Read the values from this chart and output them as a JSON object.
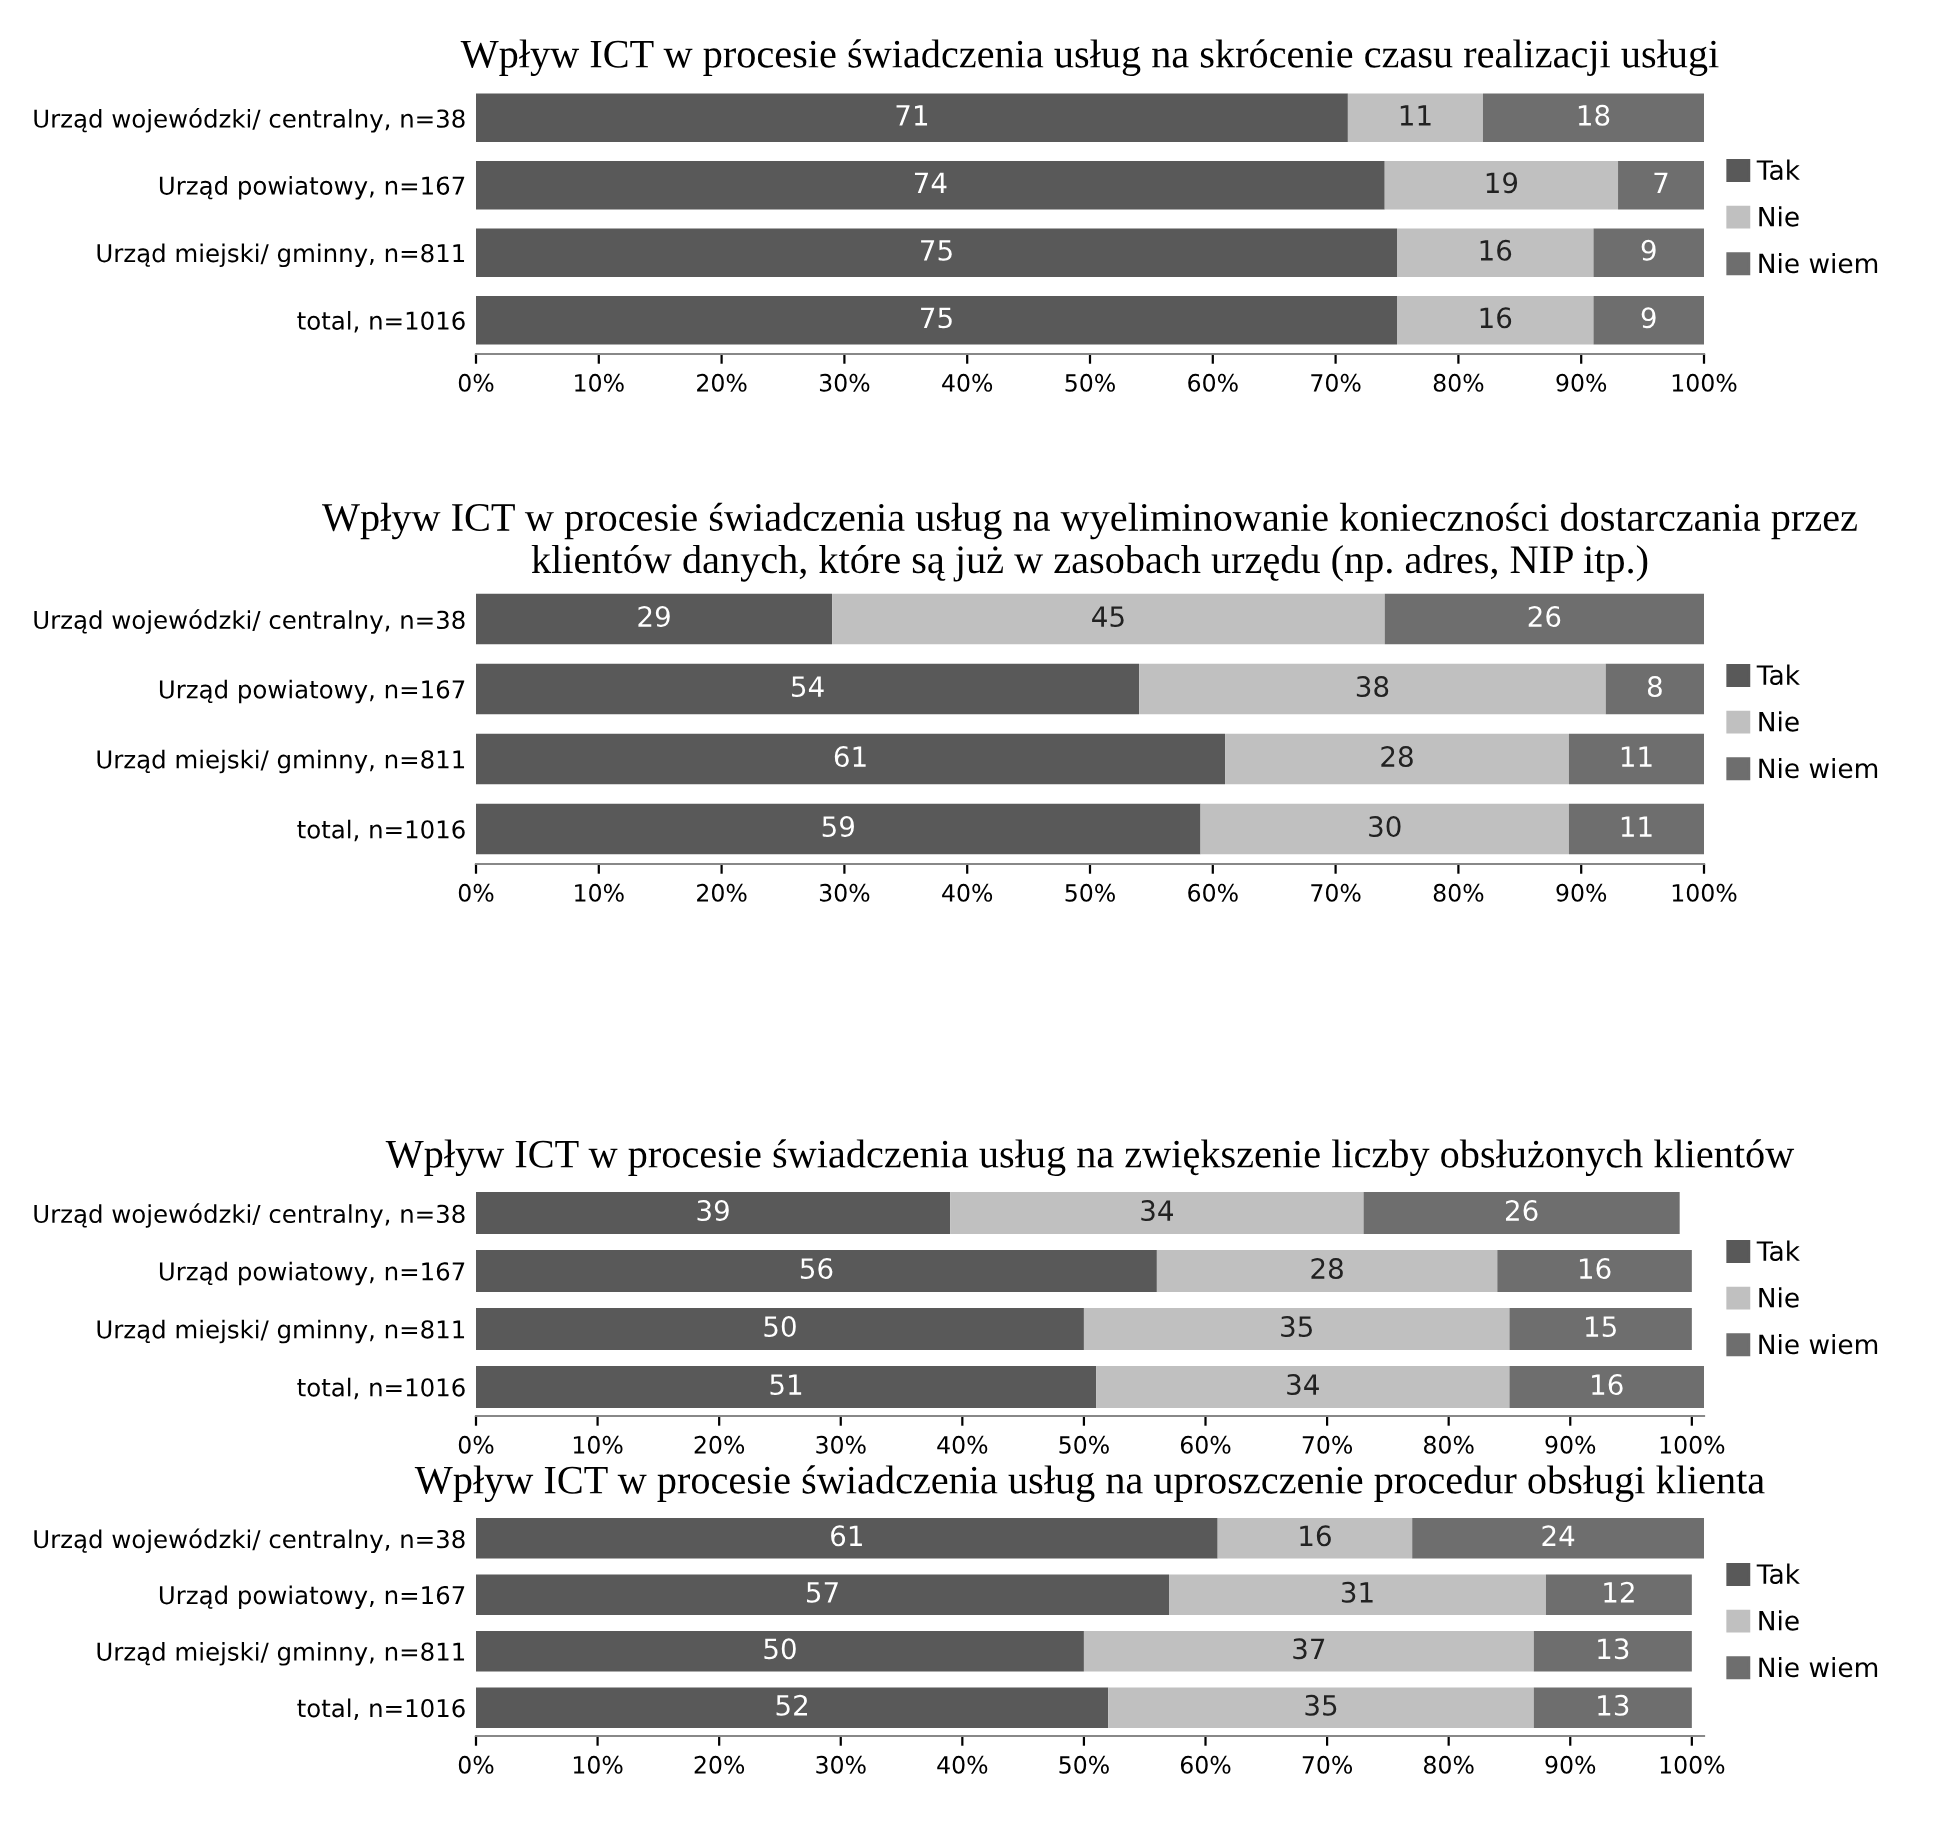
{
  "chart_data": [
    {
      "type": "bar",
      "orientation": "horizontal",
      "stacked": true,
      "title": "Wpływ ICT w procesie świadczenia usług na skrócenie czasu realizacji usługi",
      "categories": [
        "Urząd wojewódzki/ centralny, n=38",
        "Urząd powiatowy, n=167",
        "Urząd miejski/ gminny, n=811",
        "total, n=1016"
      ],
      "series": [
        {
          "name": "Tak",
          "color": "#595959",
          "values": [
            71,
            74,
            75,
            75
          ]
        },
        {
          "name": "Nie",
          "color": "#c0c0c0",
          "values": [
            11,
            19,
            16,
            16
          ]
        },
        {
          "name": "Nie wiem",
          "color": "#6e6e6e",
          "values": [
            18,
            7,
            9,
            9
          ]
        }
      ],
      "xlim": [
        0,
        100
      ],
      "xticks": [
        {
          "value": 0,
          "label": "0%"
        },
        {
          "value": 10,
          "label": "10%"
        },
        {
          "value": 20,
          "label": "20%"
        },
        {
          "value": 30,
          "label": "30%"
        },
        {
          "value": 40,
          "label": "40%"
        },
        {
          "value": 50,
          "label": "50%"
        },
        {
          "value": 60,
          "label": "60%"
        },
        {
          "value": 70,
          "label": "70%"
        },
        {
          "value": 80,
          "label": "80%"
        },
        {
          "value": 90,
          "label": "90%"
        },
        {
          "value": 100,
          "label": "100%"
        }
      ],
      "data_labels": true,
      "legend": "right",
      "grid": false
    },
    {
      "type": "bar",
      "orientation": "horizontal",
      "stacked": true,
      "title": "Wpływ ICT w procesie świadczenia usług na wyeliminowanie konieczności dostarczania przez klientów danych, które są już w zasobach urzędu (np. adres, NIP itp.)",
      "categories": [
        "Urząd wojewódzki/ centralny, n=38",
        "Urząd powiatowy, n=167",
        "Urząd miejski/ gminny, n=811",
        "total, n=1016"
      ],
      "series": [
        {
          "name": "Tak",
          "color": "#595959",
          "values": [
            29,
            54,
            61,
            59
          ]
        },
        {
          "name": "Nie",
          "color": "#c0c0c0",
          "values": [
            45,
            38,
            28,
            30
          ]
        },
        {
          "name": "Nie wiem",
          "color": "#6e6e6e",
          "values": [
            26,
            8,
            11,
            11
          ]
        }
      ],
      "xlim": [
        0,
        100
      ],
      "xticks": [
        {
          "value": 0,
          "label": "0%"
        },
        {
          "value": 10,
          "label": "10%"
        },
        {
          "value": 20,
          "label": "20%"
        },
        {
          "value": 30,
          "label": "30%"
        },
        {
          "value": 40,
          "label": "40%"
        },
        {
          "value": 50,
          "label": "50%"
        },
        {
          "value": 60,
          "label": "60%"
        },
        {
          "value": 70,
          "label": "70%"
        },
        {
          "value": 80,
          "label": "80%"
        },
        {
          "value": 90,
          "label": "90%"
        },
        {
          "value": 100,
          "label": "100%"
        }
      ],
      "data_labels": true,
      "legend": "right",
      "grid": false
    },
    {
      "type": "bar",
      "orientation": "horizontal",
      "stacked": true,
      "title": "Wpływ ICT w procesie świadczenia usług na zwiększenie liczby obsłużonych klientów",
      "categories": [
        "Urząd wojewódzki/ centralny, n=38",
        "Urząd powiatowy, n=167",
        "Urząd miejski/ gminny, n=811",
        "total, n=1016"
      ],
      "series": [
        {
          "name": "Tak",
          "color": "#595959",
          "values": [
            39,
            56,
            50,
            51
          ]
        },
        {
          "name": "Nie",
          "color": "#c0c0c0",
          "values": [
            34,
            28,
            35,
            34
          ]
        },
        {
          "name": "Nie wiem",
          "color": "#6e6e6e",
          "values": [
            26,
            16,
            15,
            16
          ]
        }
      ],
      "xlim": [
        0,
        101
      ],
      "xticks": [
        {
          "value": 0,
          "label": "0%"
        },
        {
          "value": 10,
          "label": "10%"
        },
        {
          "value": 20,
          "label": "20%"
        },
        {
          "value": 30,
          "label": "30%"
        },
        {
          "value": 40,
          "label": "40%"
        },
        {
          "value": 50,
          "label": "50%"
        },
        {
          "value": 60,
          "label": "60%"
        },
        {
          "value": 70,
          "label": "70%"
        },
        {
          "value": 80,
          "label": "80%"
        },
        {
          "value": 90,
          "label": "90%"
        },
        {
          "value": 100,
          "label": "100%"
        }
      ],
      "data_labels": true,
      "legend": "right",
      "grid": false
    },
    {
      "type": "bar",
      "orientation": "horizontal",
      "stacked": true,
      "title": "Wpływ ICT w procesie świadczenia usług na uproszczenie procedur obsługi klienta",
      "categories": [
        "Urząd wojewódzki/ centralny, n=38",
        "Urząd powiatowy, n=167",
        "Urząd miejski/ gminny, n=811",
        "total, n=1016"
      ],
      "series": [
        {
          "name": "Tak",
          "color": "#595959",
          "values": [
            61,
            57,
            50,
            52
          ]
        },
        {
          "name": "Nie",
          "color": "#c0c0c0",
          "values": [
            16,
            31,
            37,
            35
          ]
        },
        {
          "name": "Nie wiem",
          "color": "#6e6e6e",
          "values": [
            24,
            12,
            13,
            13
          ]
        }
      ],
      "xlim": [
        0,
        101
      ],
      "xticks": [
        {
          "value": 0,
          "label": "0%"
        },
        {
          "value": 10,
          "label": "10%"
        },
        {
          "value": 20,
          "label": "20%"
        },
        {
          "value": 30,
          "label": "30%"
        },
        {
          "value": 40,
          "label": "40%"
        },
        {
          "value": 50,
          "label": "50%"
        },
        {
          "value": 60,
          "label": "60%"
        },
        {
          "value": 70,
          "label": "70%"
        },
        {
          "value": 80,
          "label": "80%"
        },
        {
          "value": 90,
          "label": "90%"
        },
        {
          "value": 100,
          "label": "100%"
        }
      ],
      "data_labels": true,
      "legend": "right",
      "grid": false
    }
  ]
}
